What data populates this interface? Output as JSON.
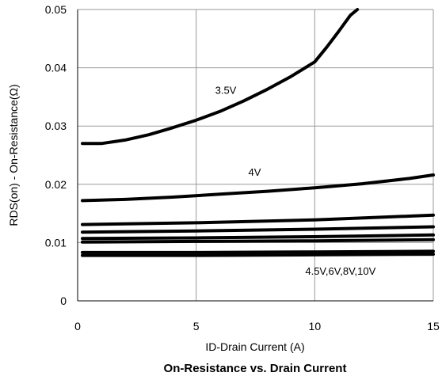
{
  "chart_data": {
    "type": "line",
    "title": "On-Resistance vs. Drain Current",
    "xlabel": "ID-Drain Current (A)",
    "ylabel": "RDS(on) - On-Resistance(Ω)",
    "xlim": [
      0,
      15
    ],
    "ylim": [
      0,
      0.05
    ],
    "xticks": [
      0,
      5,
      10,
      15
    ],
    "xtick_labels": [
      "0",
      "5",
      "10",
      "15"
    ],
    "yticks": [
      0,
      0.01,
      0.02,
      0.03,
      0.04,
      0.05
    ],
    "ytick_labels": [
      "0",
      "0.01",
      "0.02",
      "0.03",
      "0.04",
      "0.05"
    ],
    "grid": true,
    "series": [
      {
        "name": "3.5V",
        "x": [
          0.2,
          1,
          2,
          3,
          4,
          5,
          6,
          7,
          8,
          9,
          10,
          10.5,
          11,
          11.5,
          11.8
        ],
        "y": [
          0.027,
          0.027,
          0.0276,
          0.0285,
          0.0297,
          0.031,
          0.0325,
          0.0343,
          0.0363,
          0.0385,
          0.041,
          0.0435,
          0.0462,
          0.049,
          0.0505
        ]
      },
      {
        "name": "4V",
        "x": [
          0.2,
          2,
          4,
          6,
          8,
          10,
          12,
          14,
          15
        ],
        "y": [
          0.0172,
          0.0174,
          0.0178,
          0.0183,
          0.0188,
          0.0194,
          0.0201,
          0.021,
          0.0216
        ]
      },
      {
        "name": "4.5V",
        "x": [
          0.2,
          5,
          10,
          15
        ],
        "y": [
          0.0131,
          0.0134,
          0.0139,
          0.0147
        ]
      },
      {
        "name": "6V",
        "x": [
          0.2,
          5,
          10,
          15
        ],
        "y": [
          0.0118,
          0.012,
          0.0123,
          0.0127
        ]
      },
      {
        "name": "8V",
        "x": [
          0.2,
          5,
          10,
          15
        ],
        "y": [
          0.0107,
          0.0108,
          0.011,
          0.0113
        ]
      },
      {
        "name": "10V",
        "x": [
          0.2,
          5,
          10,
          15
        ],
        "y": [
          0.0101,
          0.0102,
          0.0103,
          0.0105
        ]
      },
      {
        "name": "",
        "x": [
          0.2,
          5,
          10,
          15
        ],
        "y": [
          0.0083,
          0.0083,
          0.0084,
          0.0085
        ]
      },
      {
        "name": "",
        "x": [
          0.2,
          5,
          10,
          15
        ],
        "y": [
          0.0078,
          0.0078,
          0.0079,
          0.008
        ]
      }
    ],
    "annotations": [
      {
        "text": "3.5V",
        "x": 5.8,
        "y": 0.0355
      },
      {
        "text": "4V",
        "x": 7.2,
        "y": 0.0215
      },
      {
        "text": "4.5V,6V,8V,10V",
        "x": 9.6,
        "y": 0.0045
      }
    ]
  }
}
